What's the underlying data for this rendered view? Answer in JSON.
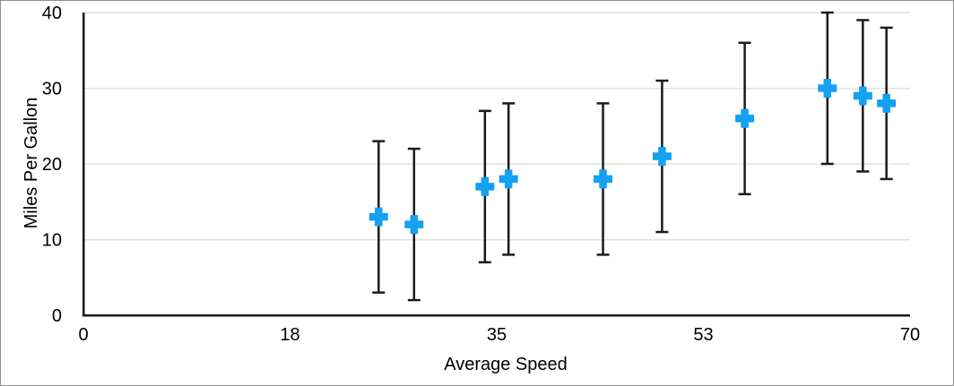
{
  "window": {
    "background": "#ffffff",
    "border_color": "#8e8e8e"
  },
  "chart_data": {
    "type": "scatter",
    "title": "",
    "xlabel": "Average Speed",
    "ylabel": "Miles Per Gallon",
    "xlim": [
      0,
      70
    ],
    "ylim": [
      0,
      40
    ],
    "x_ticks": {
      "values": [
        0,
        17.5,
        35,
        52.5,
        70
      ],
      "labels": [
        "0",
        "18",
        "35",
        "53",
        "70"
      ]
    },
    "y_ticks": {
      "values": [
        0,
        10,
        20,
        30,
        40
      ],
      "labels": [
        "0",
        "10",
        "20",
        "30",
        "40"
      ]
    },
    "grid": "horizontal-gridlines",
    "legend": "none",
    "series": [
      {
        "name": "Miles Per Gallon",
        "marker": "plus",
        "points": [
          {
            "x": 25,
            "y": 13
          },
          {
            "x": 28,
            "y": 12
          },
          {
            "x": 34,
            "y": 17
          },
          {
            "x": 36,
            "y": 18
          },
          {
            "x": 44,
            "y": 18
          },
          {
            "x": 49,
            "y": 21
          },
          {
            "x": 56,
            "y": 26
          },
          {
            "x": 63,
            "y": 30
          },
          {
            "x": 66,
            "y": 29
          },
          {
            "x": 68,
            "y": 28
          }
        ],
        "error_bars": {
          "axis": "y",
          "type": "fixed",
          "positive": 10,
          "negative": 10
        }
      }
    ]
  },
  "style": {
    "marker_color": "#14a0f3",
    "error_bar_color": "#1a1a1a",
    "axis_color": "#1a1a1a",
    "grid_color": "#e2e2e2",
    "text_color": "#000000"
  }
}
